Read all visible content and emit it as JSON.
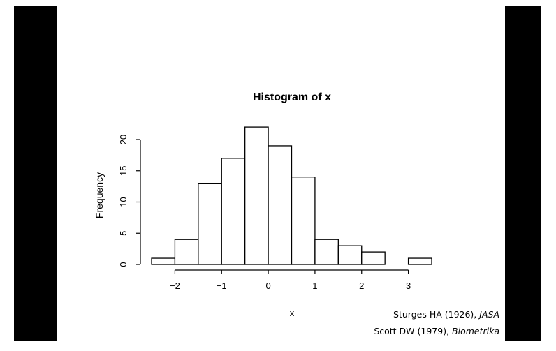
{
  "chart_data": {
    "type": "bar",
    "title": "Histogram of x",
    "xlabel": "x",
    "ylabel": "Frequency",
    "bin_edges": [
      -2.5,
      -2.0,
      -1.5,
      -1.0,
      -0.5,
      0.0,
      0.5,
      1.0,
      1.5,
      2.0,
      2.5,
      3.0,
      3.5
    ],
    "values": [
      1,
      4,
      13,
      17,
      22,
      19,
      14,
      4,
      3,
      2,
      0,
      1
    ],
    "x_ticks": [
      -2,
      -1,
      0,
      1,
      2,
      3
    ],
    "x_tick_labels": [
      "−2",
      "−1",
      "0",
      "1",
      "2",
      "3"
    ],
    "y_ticks": [
      0,
      5,
      10,
      15,
      20
    ],
    "y_tick_labels": [
      "0",
      "5",
      "10",
      "15",
      "20"
    ],
    "xlim": [
      -2.5,
      3.5
    ],
    "ylim": [
      0,
      22
    ],
    "grid": false,
    "bar_fill": "#ffffff",
    "bar_stroke": "#000000"
  },
  "references": {
    "ref1_text": "Sturges HA (1926), ",
    "ref1_journal": "JASA",
    "ref2_text": "Scott DW (1979), ",
    "ref2_journal": "Biometrika"
  }
}
